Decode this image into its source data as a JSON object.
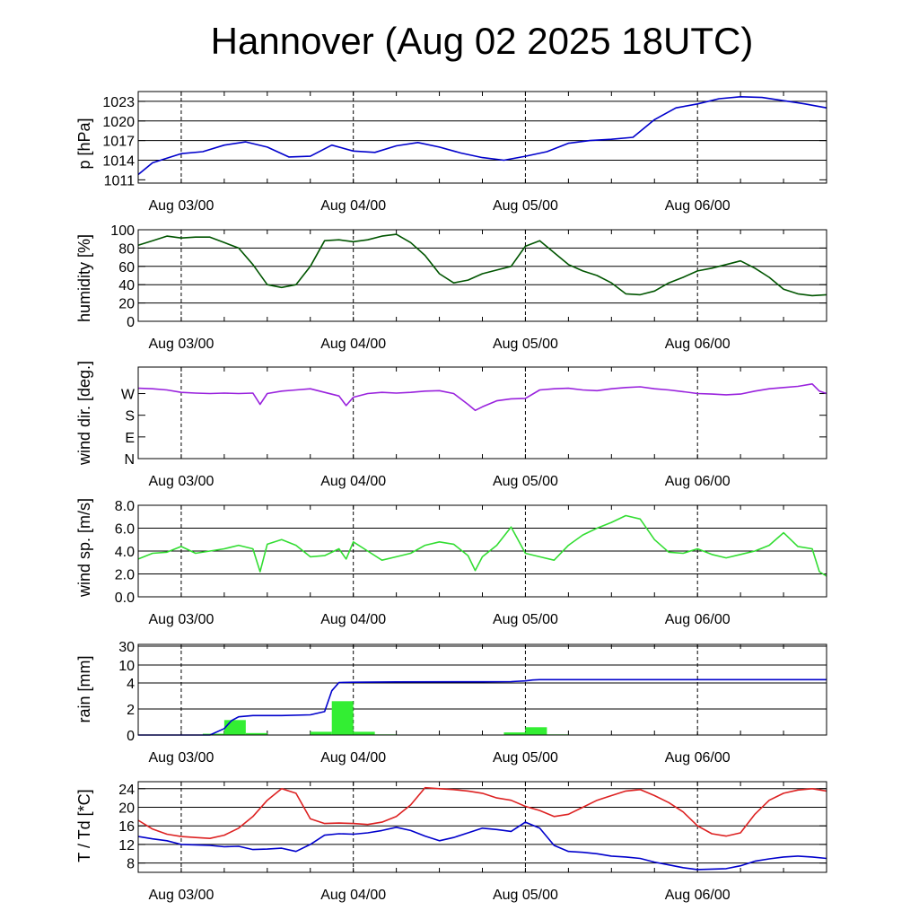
{
  "title": "Hannover (Aug 02 2025 18UTC)",
  "chart_data": {
    "type": "line",
    "x_ticks": [
      "Aug 03/00",
      "Aug 04/00",
      "Aug 05/00",
      "Aug 06/00"
    ],
    "x_unit": "hours since Aug 02 18UTC",
    "x_range": [
      0,
      96
    ],
    "x_tick_hours": [
      6,
      30,
      54,
      78
    ],
    "panels": [
      {
        "key": "pressure",
        "ylabel": "p [hPa]",
        "ylim": [
          1010.5,
          1024.5
        ],
        "yticks": [
          1011,
          1014,
          1017,
          1020,
          1023
        ],
        "ytick_labels": [
          "1011",
          "1014",
          "1017",
          "1020",
          "1023"
        ],
        "gridlines": [
          1014,
          1017,
          1020,
          1023
        ],
        "series": [
          {
            "color": "#0000cc",
            "x": [
              0,
              2,
              4,
              6,
              9,
              12,
              15,
              18,
              21,
              24,
              27,
              30,
              33,
              36,
              39,
              42,
              45,
              48,
              51,
              54,
              57,
              60,
              63,
              66,
              69,
              72,
              75,
              78,
              81,
              84,
              87,
              90,
              93,
              96
            ],
            "y": [
              1011.8,
              1013.6,
              1014.3,
              1015.0,
              1015.3,
              1016.3,
              1016.8,
              1016.0,
              1014.5,
              1014.6,
              1016.3,
              1015.4,
              1015.2,
              1016.2,
              1016.7,
              1016.0,
              1015.1,
              1014.4,
              1014.0,
              1014.6,
              1015.3,
              1016.6,
              1017.0,
              1017.2,
              1017.5,
              1020.2,
              1022.0,
              1022.6,
              1023.4,
              1023.7,
              1023.6,
              1023.1,
              1022.6,
              1022.0
            ]
          }
        ]
      },
      {
        "key": "humidity",
        "ylabel": "humidity [%]",
        "ylim": [
          0,
          100
        ],
        "yticks": [
          0,
          20,
          40,
          60,
          80,
          100
        ],
        "ytick_labels": [
          "0",
          "20",
          "40",
          "60",
          "80",
          "100"
        ],
        "gridlines": [
          20,
          40,
          60,
          80
        ],
        "series": [
          {
            "color": "#005500",
            "x": [
              0,
              2,
              4,
              6,
              8,
              10,
              12,
              14,
              16,
              18,
              20,
              22,
              24,
              26,
              28,
              30,
              32,
              34,
              36,
              38,
              40,
              42,
              44,
              46,
              48,
              50,
              52,
              54,
              56,
              58,
              60,
              62,
              64,
              66,
              68,
              70,
              72,
              74,
              76,
              78,
              80,
              82,
              84,
              86,
              88,
              90,
              92,
              94,
              96
            ],
            "y": [
              83,
              88,
              93,
              91,
              92,
              92,
              86,
              80,
              62,
              40,
              37,
              40,
              60,
              88,
              89,
              87,
              89,
              93,
              95,
              86,
              72,
              52,
              42,
              45,
              52,
              56,
              60,
              82,
              88,
              75,
              62,
              55,
              50,
              42,
              30,
              29,
              33,
              42,
              48,
              55,
              58,
              62,
              66,
              58,
              48,
              35,
              30,
              28,
              29
            ]
          }
        ]
      },
      {
        "key": "wind_direction",
        "ylabel": "wind dir. [deg.]",
        "ylim": [
          0,
          380
        ],
        "yticks": [
          0,
          90,
          180,
          270
        ],
        "ytick_labels": [
          "N",
          "E",
          "S",
          "W"
        ],
        "gridlines": [],
        "series": [
          {
            "color": "#9922dd",
            "x": [
              0,
              2,
              4,
              6,
              8,
              10,
              12,
              14,
              16,
              17,
              18,
              20,
              22,
              24,
              26,
              28,
              29,
              30,
              32,
              34,
              36,
              38,
              40,
              42,
              44,
              46,
              47,
              48,
              50,
              52,
              54,
              56,
              58,
              60,
              62,
              64,
              66,
              68,
              70,
              72,
              74,
              76,
              78,
              80,
              82,
              84,
              86,
              88,
              90,
              92,
              94,
              95,
              96
            ],
            "y": [
              292,
              290,
              285,
              275,
              272,
              270,
              272,
              270,
              272,
              225,
              270,
              280,
              285,
              290,
              275,
              260,
              220,
              255,
              270,
              275,
              272,
              275,
              280,
              282,
              270,
              225,
              200,
              215,
              240,
              248,
              250,
              285,
              290,
              292,
              285,
              282,
              290,
              295,
              298,
              290,
              285,
              278,
              270,
              268,
              265,
              268,
              280,
              290,
              295,
              300,
              310,
              280,
              270
            ]
          }
        ]
      },
      {
        "key": "wind_speed",
        "ylabel": "wind sp. [m/s]",
        "ylim": [
          0,
          8
        ],
        "yticks": [
          0,
          2,
          4,
          6,
          8
        ],
        "ytick_labels": [
          "0.0",
          "2.0",
          "4.0",
          "6.0",
          "8.0"
        ],
        "gridlines": [
          2,
          4,
          6
        ],
        "series": [
          {
            "color": "#33dd33",
            "x": [
              0,
              2,
              4,
              6,
              8,
              10,
              12,
              14,
              16,
              17,
              18,
              20,
              22,
              24,
              26,
              28,
              29,
              30,
              32,
              34,
              36,
              38,
              40,
              42,
              44,
              46,
              47,
              48,
              50,
              52,
              54,
              56,
              58,
              60,
              62,
              64,
              66,
              68,
              70,
              72,
              74,
              76,
              78,
              80,
              82,
              84,
              86,
              88,
              90,
              92,
              94,
              95,
              96
            ],
            "y": [
              3.3,
              3.8,
              3.9,
              4.4,
              3.8,
              4.0,
              4.2,
              4.5,
              4.2,
              2.2,
              4.6,
              5.0,
              4.5,
              3.5,
              3.6,
              4.2,
              3.3,
              4.8,
              4.0,
              3.2,
              3.5,
              3.8,
              4.5,
              4.8,
              4.6,
              3.6,
              2.3,
              3.5,
              4.5,
              6.1,
              3.8,
              3.5,
              3.2,
              4.5,
              5.4,
              6.0,
              6.5,
              7.1,
              6.8,
              5.0,
              3.9,
              3.8,
              4.2,
              3.7,
              3.4,
              3.7,
              4.0,
              4.5,
              5.6,
              4.4,
              4.2,
              2.2,
              1.8
            ]
          }
        ]
      },
      {
        "key": "rain",
        "ylabel": "rain [mm]",
        "yticks": [
          0,
          2,
          4,
          10,
          30
        ],
        "ytick_labels": [
          "0",
          "2",
          "4",
          "10",
          "30"
        ],
        "gridlines": [
          2,
          4,
          10,
          30
        ],
        "bars": {
          "color": "#33ee33",
          "x": [
            10.5,
            13.5,
            16.5,
            25.5,
            28.5,
            31.5,
            34.5,
            52.5,
            55.5,
            58.5
          ],
          "values": [
            0.1,
            1.15,
            0.15,
            0.25,
            2.6,
            0.25,
            0.05,
            0.2,
            0.6,
            0.05
          ]
        },
        "series": [
          {
            "color": "#0000cc",
            "name_hint": "accumulated",
            "x": [
              0,
              10,
              12,
              13,
              14,
              16,
              20,
              24,
              26,
              27,
              28,
              30,
              36,
              48,
              52,
              54,
              55,
              56,
              60,
              96
            ],
            "y": [
              0,
              0,
              0.5,
              1.1,
              1.4,
              1.5,
              1.5,
              1.55,
              1.8,
              3.4,
              4.15,
              4.25,
              4.35,
              4.4,
              4.45,
              4.7,
              5.0,
              5.1,
              5.1,
              5.1
            ]
          }
        ]
      },
      {
        "key": "temperature",
        "ylabel": "T / Td [*C]",
        "ylim": [
          6,
          25.5
        ],
        "yticks": [
          8,
          12,
          16,
          20,
          24
        ],
        "ytick_labels": [
          "8",
          "12",
          "16",
          "20",
          "24"
        ],
        "gridlines": [
          8,
          12,
          16,
          20,
          24
        ],
        "series": [
          {
            "color": "#dd2222",
            "x": [
              0,
              2,
              4,
              6,
              8,
              10,
              12,
              14,
              16,
              18,
              20,
              22,
              24,
              26,
              28,
              30,
              32,
              34,
              36,
              38,
              40,
              42,
              44,
              46,
              48,
              50,
              52,
              54,
              56,
              58,
              60,
              62,
              64,
              66,
              68,
              70,
              72,
              74,
              76,
              78,
              80,
              82,
              84,
              86,
              88,
              90,
              92,
              94,
              96
            ],
            "y": [
              17.2,
              15.3,
              14.2,
              13.7,
              13.5,
              13.3,
              14.0,
              15.5,
              18.0,
              21.5,
              24.0,
              23.0,
              17.5,
              16.5,
              16.6,
              16.5,
              16.3,
              16.8,
              18.0,
              20.5,
              24.2,
              24.0,
              23.8,
              23.5,
              23.0,
              22.0,
              21.5,
              20.2,
              19.3,
              18.0,
              18.5,
              20.0,
              21.5,
              22.5,
              23.5,
              23.8,
              22.5,
              21.0,
              19.0,
              16.0,
              14.3,
              13.8,
              14.5,
              18.5,
              21.5,
              23.0,
              23.7,
              24.0,
              23.5
            ]
          },
          {
            "color": "#0000cc",
            "x": [
              0,
              2,
              4,
              6,
              8,
              10,
              12,
              14,
              16,
              18,
              20,
              22,
              24,
              26,
              28,
              30,
              32,
              34,
              36,
              38,
              40,
              42,
              44,
              46,
              48,
              50,
              52,
              54,
              56,
              58,
              60,
              62,
              64,
              66,
              68,
              70,
              72,
              74,
              76,
              78,
              80,
              82,
              84,
              86,
              88,
              90,
              92,
              94,
              96
            ],
            "y": [
              13.7,
              13.2,
              12.8,
              12.0,
              11.9,
              11.8,
              11.5,
              11.6,
              10.9,
              11.0,
              11.2,
              10.5,
              12.0,
              14.0,
              14.3,
              14.2,
              14.5,
              15.0,
              15.7,
              15.0,
              13.8,
              12.8,
              13.5,
              14.5,
              15.5,
              15.2,
              14.8,
              16.8,
              15.5,
              11.8,
              10.5,
              10.3,
              10.0,
              9.5,
              9.3,
              9.0,
              8.2,
              7.6,
              7.0,
              6.6,
              6.7,
              6.8,
              7.4,
              8.4,
              8.9,
              9.3,
              9.5,
              9.3,
              9.0
            ]
          }
        ]
      }
    ]
  }
}
